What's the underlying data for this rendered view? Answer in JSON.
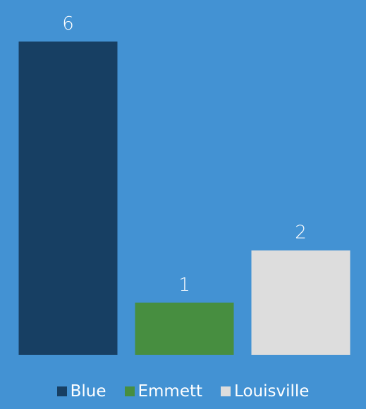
{
  "background": "#4392D3",
  "chart_data": {
    "type": "bar",
    "categories": [
      "Blue",
      "Emmett",
      "Louisville"
    ],
    "values": [
      6,
      1,
      2
    ],
    "colors": [
      "#173F63",
      "#478E40",
      "#DDDDDD"
    ],
    "data_labels": [
      "6",
      "1",
      "2"
    ],
    "ylim": [
      0,
      6
    ],
    "grid": false,
    "axes_visible": false,
    "legend": {
      "position": "bottom",
      "entries": [
        "Blue",
        "Emmett",
        "Louisville"
      ]
    }
  }
}
